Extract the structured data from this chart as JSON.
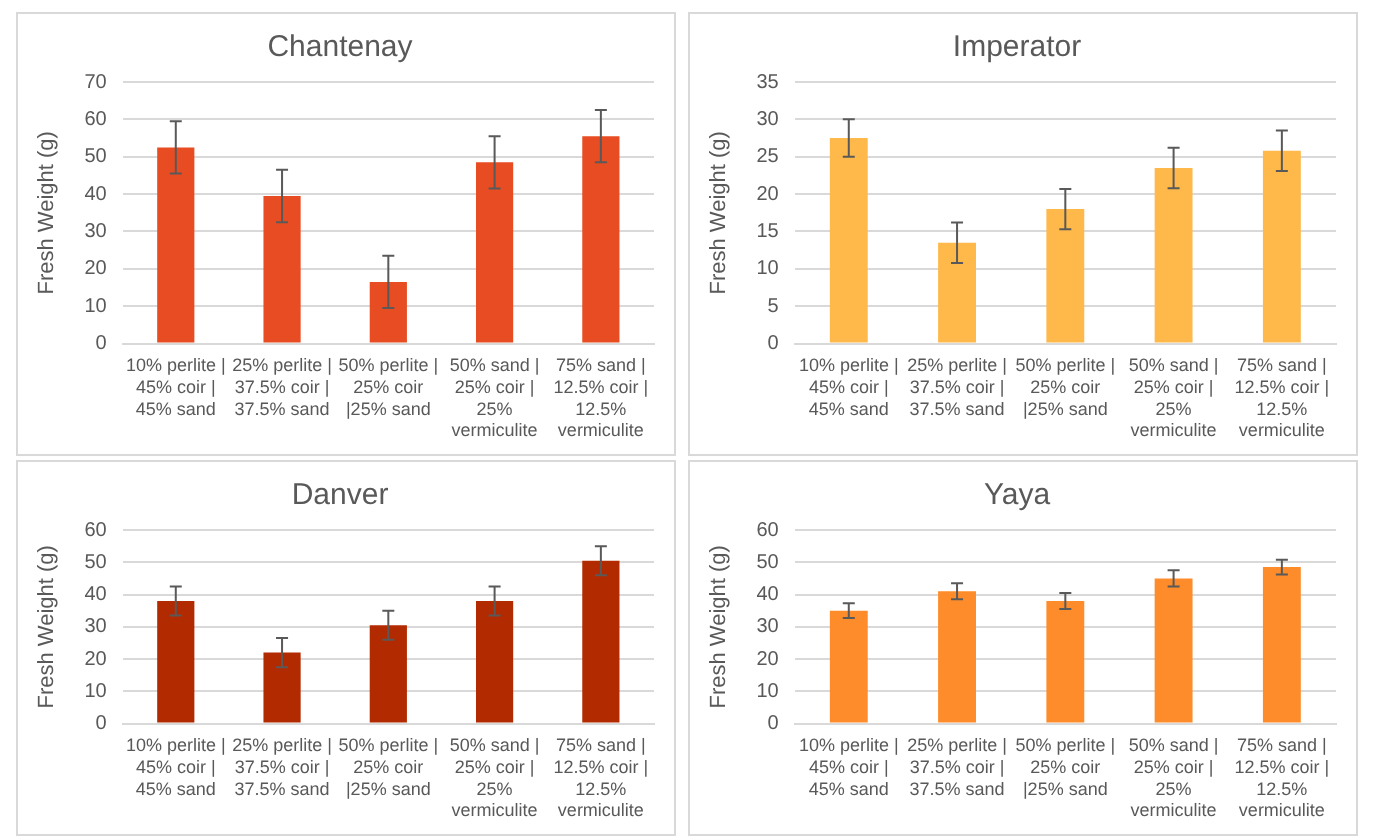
{
  "chart_data": [
    {
      "type": "bar",
      "title": "Chantenay",
      "ylabel": "Fresh Weight (g)",
      "categories": [
        "10% perlite | 45% coir | 45% sand",
        "25% perlite | 37.5% coir | 37.5% sand",
        "50% perlite | 25% coir |25% sand",
        "50% sand | 25% coir | 25% vermiculite",
        "75% sand | 12.5% coir | 12.5% vermiculite"
      ],
      "values": [
        52.5,
        39.5,
        16.5,
        48.5,
        55.5
      ],
      "errors": [
        7,
        7,
        7,
        7,
        7
      ],
      "color": "#e84c22",
      "ylim": [
        0,
        70
      ],
      "yticks": [
        0,
        10,
        20,
        30,
        40,
        50,
        60,
        70
      ],
      "grid": "y",
      "legend": false
    },
    {
      "type": "bar",
      "title": "Imperator",
      "ylabel": "Fresh Weight (g)",
      "categories": [
        "10% perlite | 45% coir | 45% sand",
        "25% perlite | 37.5% coir | 37.5% sand",
        "50% perlite | 25% coir |25% sand",
        "50% sand | 25% coir | 25% vermiculite",
        "75% sand | 12.5% coir | 12.5% vermiculite"
      ],
      "values": [
        27.5,
        13.5,
        18,
        23.5,
        25.8
      ],
      "errors": [
        2.5,
        2.7,
        2.7,
        2.7,
        2.7
      ],
      "color": "#ffb94a",
      "ylim": [
        0,
        35
      ],
      "yticks": [
        0,
        5,
        10,
        15,
        20,
        25,
        30,
        35
      ],
      "grid": "y",
      "legend": false
    },
    {
      "type": "bar",
      "title": "Danver",
      "ylabel": "Fresh Weight (g)",
      "categories": [
        "10% perlite | 45% coir | 45% sand",
        "25% perlite | 37.5% coir | 37.5% sand",
        "50% perlite | 25% coir |25% sand",
        "50% sand | 25% coir | 25% vermiculite",
        "75% sand | 12.5% coir | 12.5% vermiculite"
      ],
      "values": [
        38,
        22,
        30.5,
        38,
        50.5
      ],
      "errors": [
        4.5,
        4.5,
        4.5,
        4.5,
        4.5
      ],
      "color": "#b22a00",
      "ylim": [
        0,
        60
      ],
      "yticks": [
        0,
        10,
        20,
        30,
        40,
        50,
        60
      ],
      "grid": "y",
      "legend": false
    },
    {
      "type": "bar",
      "title": "Yaya",
      "ylabel": "Fresh Weight (g)",
      "categories": [
        "10% perlite | 45% coir | 45% sand",
        "25% perlite | 37.5% coir | 37.5% sand",
        "50% perlite | 25% coir |25% sand",
        "50% sand | 25% coir | 25% vermiculite",
        "75% sand | 12.5% coir | 12.5% vermiculite"
      ],
      "values": [
        35,
        41,
        38,
        45,
        48.5
      ],
      "errors": [
        2.3,
        2.5,
        2.5,
        2.5,
        2.3
      ],
      "color": "#ff8c2a",
      "ylim": [
        0,
        60
      ],
      "yticks": [
        0,
        10,
        20,
        30,
        40,
        50,
        60
      ],
      "grid": "y",
      "legend": false
    }
  ]
}
